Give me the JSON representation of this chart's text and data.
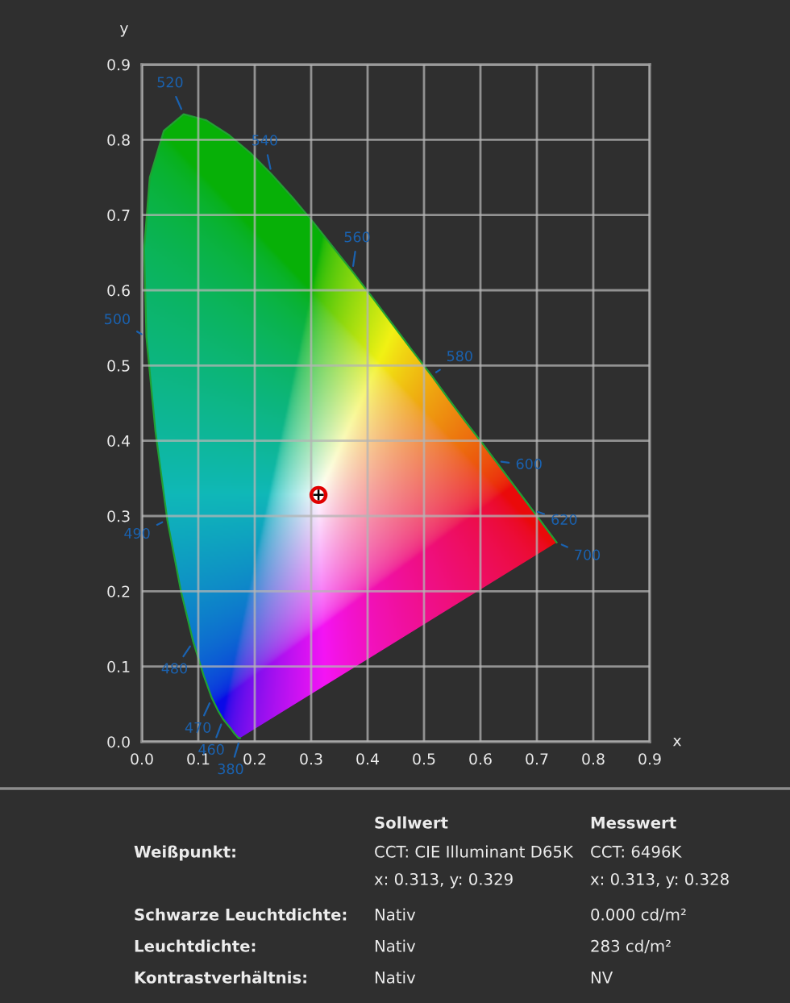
{
  "chart_data": {
    "type": "line",
    "xlabel": "x",
    "ylabel": "y",
    "xlim": [
      0,
      0.9
    ],
    "ylim": [
      0,
      0.9
    ],
    "xticks": [
      {
        "value": 0,
        "label": "0.0"
      },
      0.1,
      0.2,
      0.3,
      0.4,
      0.5,
      0.6,
      0.7,
      0.8,
      0.9
    ],
    "yticks": [
      {
        "value": 0,
        "label": "0.0"
      },
      0.1,
      0.2,
      0.3,
      0.4,
      0.5,
      0.6,
      0.7,
      0.8,
      0.9
    ],
    "grid": true,
    "series": [
      {
        "color": "#22a033",
        "x": [
          0.174,
          0.171,
          0.164,
          0.157,
          0.144,
          0.136,
          0.124,
          0.11,
          0.091,
          0.069,
          0.045,
          0.024,
          0.008,
          0.004,
          0.014,
          0.039,
          0.074,
          0.114,
          0.155,
          0.193,
          0.23,
          0.266,
          0.302,
          0.337,
          0.373,
          0.409,
          0.444,
          0.479,
          0.513,
          0.545,
          0.575,
          0.603,
          0.627,
          0.666,
          0.692,
          0.708,
          0.719,
          0.735
        ],
        "values": [
          0.005,
          0.005,
          0.011,
          0.018,
          0.03,
          0.04,
          0.058,
          0.087,
          0.133,
          0.201,
          0.295,
          0.413,
          0.538,
          0.655,
          0.75,
          0.812,
          0.834,
          0.826,
          0.806,
          0.782,
          0.754,
          0.724,
          0.692,
          0.659,
          0.625,
          0.59,
          0.555,
          0.52,
          0.487,
          0.454,
          0.424,
          0.397,
          0.373,
          0.334,
          0.308,
          0.292,
          0.281,
          0.265
        ]
      },
      {
        "type": "scatter",
        "color": "#e00000",
        "marker": "circle",
        "x": [
          0.313
        ],
        "values": [
          0.328
        ]
      }
    ],
    "annotations": [
      {
        "text": "380",
        "x": 0.174,
        "y": 0.005
      },
      {
        "text": "460",
        "x": 0.144,
        "y": 0.03
      },
      {
        "text": "470",
        "x": 0.124,
        "y": 0.058
      },
      {
        "text": "480",
        "x": 0.091,
        "y": 0.133
      },
      {
        "text": "490",
        "x": 0.045,
        "y": 0.295
      },
      {
        "text": "500",
        "x": 0.008,
        "y": 0.538
      },
      {
        "text": "520",
        "x": 0.074,
        "y": 0.834
      },
      {
        "text": "540",
        "x": 0.23,
        "y": 0.754
      },
      {
        "text": "560",
        "x": 0.373,
        "y": 0.625
      },
      {
        "text": "580",
        "x": 0.513,
        "y": 0.487
      },
      {
        "text": "600",
        "x": 0.627,
        "y": 0.373
      },
      {
        "text": "620",
        "x": 0.692,
        "y": 0.308
      },
      {
        "text": "700",
        "x": 0.735,
        "y": 0.265
      },
      "Sollwert",
      "Messwert",
      "Weißpunkt:",
      "CCT: CIE Illuminant D65K\nx: 0.313, y: 0.329",
      "CCT: 6496K\nx: 0.313, y: 0.328",
      "Schwarze Leuchtdichte:",
      "Nativ",
      "0.000 cd/m²",
      "Leuchtdichte:",
      "Nativ",
      "283 cd/m²",
      "Kontrastverhältnis:",
      "Nativ",
      "NV"
    ]
  }
}
